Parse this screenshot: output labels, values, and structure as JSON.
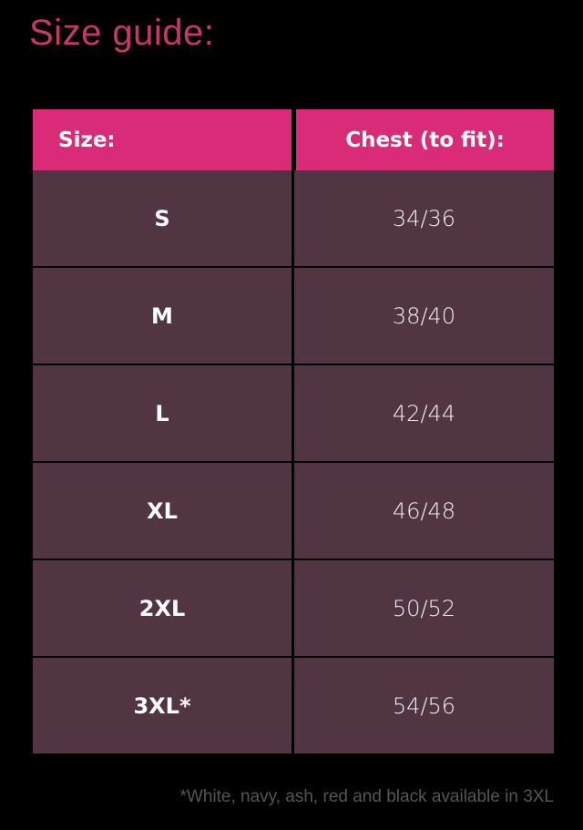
{
  "title": "Size guide:",
  "table": {
    "headers": [
      "Size:",
      "Chest (to fit):"
    ],
    "rows": [
      {
        "size": "S",
        "chest": "34/36"
      },
      {
        "size": "M",
        "chest": "38/40"
      },
      {
        "size": "L",
        "chest": "42/44"
      },
      {
        "size": "XL",
        "chest": "46/48"
      },
      {
        "size": "2XL",
        "chest": "50/52"
      },
      {
        "size": "3XL*",
        "chest": "54/56"
      }
    ]
  },
  "footnote": "*White, navy, ash, red and black available in 3XL",
  "colors": {
    "header": "#d92b78",
    "row": "#523543",
    "title": "#c8366a"
  }
}
